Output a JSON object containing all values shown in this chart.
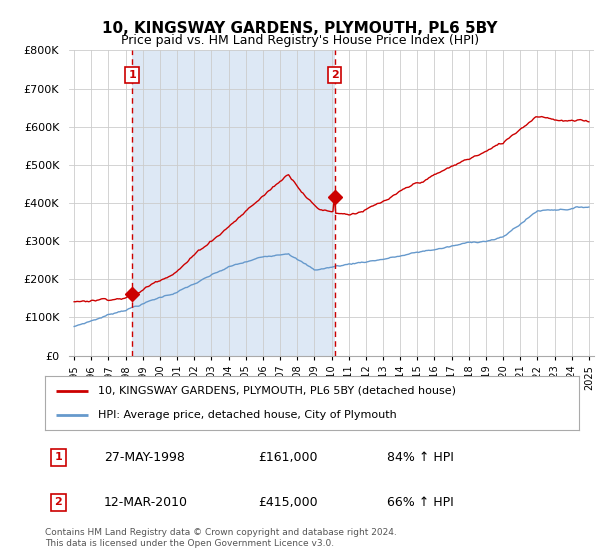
{
  "title": "10, KINGSWAY GARDENS, PLYMOUTH, PL6 5BY",
  "subtitle": "Price paid vs. HM Land Registry's House Price Index (HPI)",
  "sale1_date": 1998.38,
  "sale1_price": 161000,
  "sale1_label": "1",
  "sale1_display": "27-MAY-1998",
  "sale1_hpi_text": "84% ↑ HPI",
  "sale2_date": 2010.19,
  "sale2_price": 415000,
  "sale2_label": "2",
  "sale2_display": "12-MAR-2010",
  "sale2_hpi_text": "66% ↑ HPI",
  "red_line_label": "10, KINGSWAY GARDENS, PLYMOUTH, PL6 5BY (detached house)",
  "blue_line_label": "HPI: Average price, detached house, City of Plymouth",
  "footer": "Contains HM Land Registry data © Crown copyright and database right 2024.\nThis data is licensed under the Open Government Licence v3.0.",
  "red_color": "#cc0000",
  "blue_color": "#6699cc",
  "vline_color": "#cc0000",
  "marker_box_color": "#cc0000",
  "shade_color": "#dde8f5",
  "ylim": [
    0,
    800000
  ],
  "xlim": [
    1994.7,
    2025.3
  ],
  "bg_color": "#ffffff",
  "grid_color": "#cccccc"
}
